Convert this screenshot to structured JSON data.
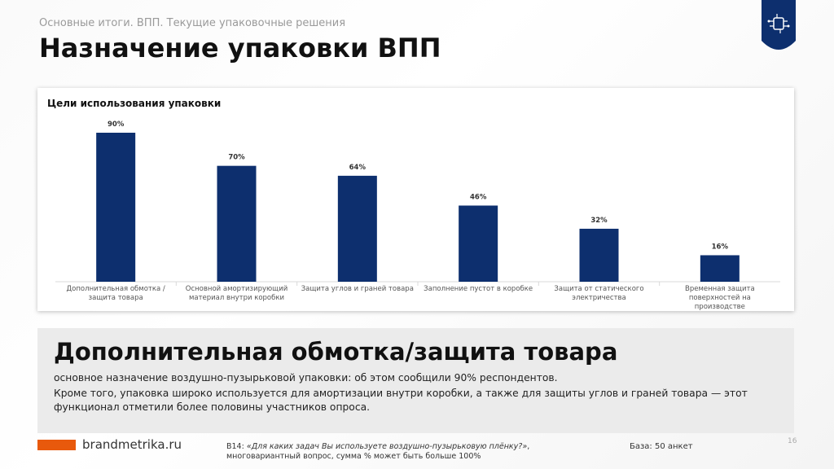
{
  "header": {
    "subtitle": "Основные итоги. ВПП. Текущие упаковочные решения",
    "title": "Назначение упаковки ВПП"
  },
  "chart_data": {
    "type": "bar",
    "title": "Цели использования упаковки",
    "categories": [
      "Дополнительная обмотка / защита товара",
      "Основной амортизирующий материал внутри коробки",
      "Защита углов и граней товара",
      "Заполнение пустот в коробке",
      "Защита от статического электричества",
      "Временная защита поверхностей на производстве"
    ],
    "values": [
      90,
      70,
      64,
      46,
      32,
      16
    ],
    "value_labels": [
      "90%",
      "70%",
      "64%",
      "46%",
      "32%",
      "16%"
    ],
    "color": "#0d2f6e"
  },
  "summary": {
    "heading": "Дополнительная обмотка/защита товара",
    "paragraphs": [
      "основное назначение воздушно-пузырьковой упаковки: об этом сообщили 90% респондентов.",
      "Кроме того, упаковка широко используется для амортизации внутри коробки, а также для защиты углов и граней товара — этот функционал отметили более половины участников опроса."
    ]
  },
  "footer": {
    "site": "brandmetrika.ru",
    "question_id": "В14:",
    "question": "«Для каких задач Вы используете воздушно-пузырьковую плёнку?»",
    "question_note": ", многовариантный вопрос, сумма % может быть больше 100%",
    "base": "База: 50 анкет",
    "page": 16
  }
}
